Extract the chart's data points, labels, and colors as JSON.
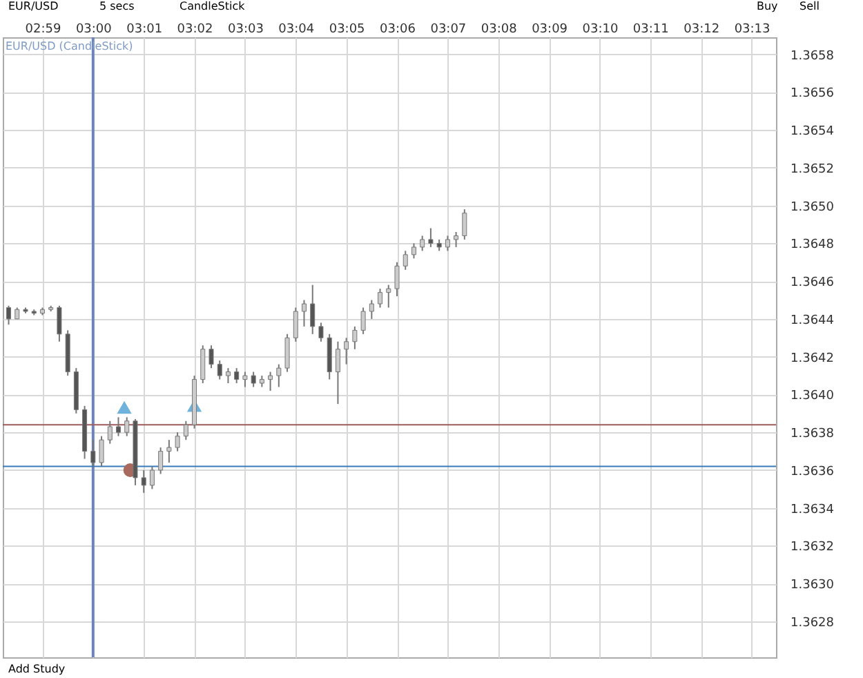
{
  "chart_data": {
    "type": "candlestick",
    "title": "EUR/USD (CandleStick)",
    "annotations": [
      "EUR/USD",
      "5 secs",
      "CandleStick",
      "Buy",
      "Sell",
      "Add Study"
    ],
    "x": [
      2.97222,
      2.975,
      2.97778,
      2.98056,
      2.98333,
      2.98611,
      2.98889,
      2.99167,
      2.99444,
      2.99722,
      3.0,
      3.00278,
      3.00556,
      3.00833,
      3.01111,
      3.01389,
      3.01667,
      3.01944,
      3.02222,
      3.025,
      3.02778,
      3.03056,
      3.03333,
      3.03611,
      3.03889,
      3.04167,
      3.04444,
      3.04722,
      3.05,
      3.05278,
      3.05556,
      3.05833,
      3.06111,
      3.06389,
      3.06667,
      3.06944,
      3.07222,
      3.075,
      3.07778,
      3.08056,
      3.08333,
      3.08611,
      3.08889,
      3.09167,
      3.09444,
      3.09722,
      3.1,
      3.10278,
      3.10556,
      3.10833,
      3.11111,
      3.11389,
      3.11667,
      3.11944,
      3.12222
    ],
    "ohlc": [
      [
        1.36446,
        1.36447,
        1.36437,
        1.3644
      ],
      [
        1.3644,
        1.36446,
        1.3644,
        1.36445
      ],
      [
        1.36445,
        1.36446,
        1.36443,
        1.36444
      ],
      [
        1.36444,
        1.36445,
        1.36442,
        1.36443
      ],
      [
        1.36443,
        1.36446,
        1.36442,
        1.36445
      ],
      [
        1.36445,
        1.36447,
        1.36444,
        1.36446
      ],
      [
        1.36446,
        1.36447,
        1.36428,
        1.36432
      ],
      [
        1.36432,
        1.36434,
        1.3641,
        1.36412
      ],
      [
        1.36412,
        1.36414,
        1.3639,
        1.36392
      ],
      [
        1.36392,
        1.36394,
        1.36366,
        1.3637
      ],
      [
        1.3637,
        1.36376,
        1.36362,
        1.36364
      ],
      [
        1.36364,
        1.36378,
        1.36362,
        1.36376
      ],
      [
        1.36376,
        1.36386,
        1.36374,
        1.36383
      ],
      [
        1.36383,
        1.36388,
        1.36378,
        1.3638
      ],
      [
        1.3638,
        1.36388,
        1.36378,
        1.36386
      ],
      [
        1.36386,
        1.36387,
        1.36352,
        1.36356
      ],
      [
        1.36356,
        1.3636,
        1.36348,
        1.36352
      ],
      [
        1.36352,
        1.36362,
        1.3635,
        1.3636
      ],
      [
        1.3636,
        1.36372,
        1.36358,
        1.3637
      ],
      [
        1.3637,
        1.36376,
        1.36364,
        1.36372
      ],
      [
        1.36372,
        1.3638,
        1.3637,
        1.36378
      ],
      [
        1.36378,
        1.36386,
        1.36376,
        1.36384
      ],
      [
        1.36384,
        1.3641,
        1.36382,
        1.36408
      ],
      [
        1.36408,
        1.36426,
        1.36406,
        1.36424
      ],
      [
        1.36424,
        1.36426,
        1.36414,
        1.36416
      ],
      [
        1.36416,
        1.36418,
        1.36408,
        1.3641
      ],
      [
        1.3641,
        1.36414,
        1.36406,
        1.36412
      ],
      [
        1.36412,
        1.36414,
        1.36406,
        1.36408
      ],
      [
        1.36408,
        1.36412,
        1.36404,
        1.3641
      ],
      [
        1.3641,
        1.36412,
        1.36404,
        1.36406
      ],
      [
        1.36406,
        1.3641,
        1.36404,
        1.36408
      ],
      [
        1.36408,
        1.36412,
        1.36402,
        1.3641
      ],
      [
        1.3641,
        1.36416,
        1.36404,
        1.36414
      ],
      [
        1.36414,
        1.36432,
        1.36412,
        1.3643
      ],
      [
        1.3643,
        1.36446,
        1.36428,
        1.36444
      ],
      [
        1.36444,
        1.3645,
        1.36436,
        1.36448
      ],
      [
        1.36448,
        1.36458,
        1.36432,
        1.36436
      ],
      [
        1.36436,
        1.36438,
        1.36428,
        1.3643
      ],
      [
        1.3643,
        1.36432,
        1.36408,
        1.36412
      ],
      [
        1.36412,
        1.36428,
        1.36395,
        1.36424
      ],
      [
        1.36424,
        1.3643,
        1.36416,
        1.36428
      ],
      [
        1.36428,
        1.36436,
        1.36424,
        1.36434
      ],
      [
        1.36434,
        1.36446,
        1.36432,
        1.36444
      ],
      [
        1.36444,
        1.3645,
        1.3644,
        1.36448
      ],
      [
        1.36448,
        1.36456,
        1.36446,
        1.36454
      ],
      [
        1.36454,
        1.36458,
        1.36446,
        1.36456
      ],
      [
        1.36456,
        1.3647,
        1.36452,
        1.36468
      ],
      [
        1.36468,
        1.36476,
        1.36466,
        1.36474
      ],
      [
        1.36474,
        1.3648,
        1.36472,
        1.36478
      ],
      [
        1.36478,
        1.36484,
        1.36476,
        1.36482
      ],
      [
        1.36482,
        1.36488,
        1.36478,
        1.3648
      ],
      [
        1.3648,
        1.36482,
        1.36476,
        1.36478
      ],
      [
        1.36478,
        1.36484,
        1.36476,
        1.36482
      ],
      [
        1.36482,
        1.36486,
        1.36478,
        1.36484
      ],
      [
        1.36484,
        1.36498,
        1.36482,
        1.36496
      ]
    ],
    "colors": [
      "#555555",
      "#cccccc",
      "#555555",
      "#555555",
      "#cccccc",
      "#cccccc",
      "#555555",
      "#555555",
      "#555555",
      "#555555",
      "#555555",
      "#cccccc",
      "#cccccc",
      "#555555",
      "#cccccc",
      "#555555",
      "#555555",
      "#cccccc",
      "#cccccc",
      "#cccccc",
      "#cccccc",
      "#cccccc",
      "#cccccc",
      "#cccccc",
      "#555555",
      "#555555",
      "#cccccc",
      "#555555",
      "#cccccc",
      "#555555",
      "#cccccc",
      "#cccccc",
      "#cccccc",
      "#cccccc",
      "#cccccc",
      "#cccccc",
      "#555555",
      "#555555",
      "#555555",
      "#cccccc",
      "#cccccc",
      "#cccccc",
      "#cccccc",
      "#cccccc",
      "#cccccc",
      "#cccccc",
      "#cccccc",
      "#cccccc",
      "#cccccc",
      "#cccccc",
      "#555555",
      "#555555",
      "#cccccc",
      "#cccccc",
      "#cccccc"
    ],
    "series": [
      {
        "type": "scatter",
        "marker": "triangle",
        "color": "#6fb3dc",
        "x": [
          3.01028,
          3.03333
        ],
        "values": [
          1.36393,
          1.36394
        ]
      },
      {
        "type": "scatter",
        "marker": "circle",
        "color": "#a86a5e",
        "x": [
          3.01222
        ],
        "values": [
          1.3636
        ]
      }
    ],
    "ref_lines": [
      {
        "axis": "x",
        "value": 3.0,
        "color": "#6b84c0"
      },
      {
        "axis": "y",
        "value": 1.36384,
        "color": "#a05a5a"
      },
      {
        "axis": "y",
        "value": 1.36362,
        "color": "#3a7ab8"
      }
    ],
    "xlim": [
      2.97028,
      3.22472
    ],
    "xticks": [
      {
        "value": 2.98333,
        "label": "02:59"
      },
      {
        "value": 3.0,
        "label": "03:00"
      },
      {
        "value": 3.01667,
        "label": "03:01"
      },
      {
        "value": 3.03333,
        "label": "03:02"
      },
      {
        "value": 3.05,
        "label": "03:03"
      },
      {
        "value": 3.06667,
        "label": "03:04"
      },
      {
        "value": 3.08333,
        "label": "03:05"
      },
      {
        "value": 3.1,
        "label": "03:06"
      },
      {
        "value": 3.11667,
        "label": "03:07"
      },
      {
        "value": 3.13333,
        "label": "03:08"
      },
      {
        "value": 3.15,
        "label": "03:09"
      },
      {
        "value": 3.16667,
        "label": "03:10"
      },
      {
        "value": 3.18333,
        "label": "03:11"
      },
      {
        "value": 3.2,
        "label": "03:12"
      },
      {
        "value": 3.21667,
        "label": "03:13"
      }
    ],
    "ylim": [
      1.36261,
      1.36589
    ],
    "yticks": [
      1.3628,
      {
        "value": 1.363,
        "label": "1.3630"
      },
      1.3632,
      1.3634,
      1.3636,
      1.3638,
      {
        "value": 1.364,
        "label": "1.3640"
      },
      1.3642,
      1.3644,
      1.3646,
      1.3648,
      {
        "value": 1.365,
        "label": "1.3650"
      },
      1.3652,
      1.3654,
      1.3656,
      1.3658
    ],
    "grid": true
  }
}
